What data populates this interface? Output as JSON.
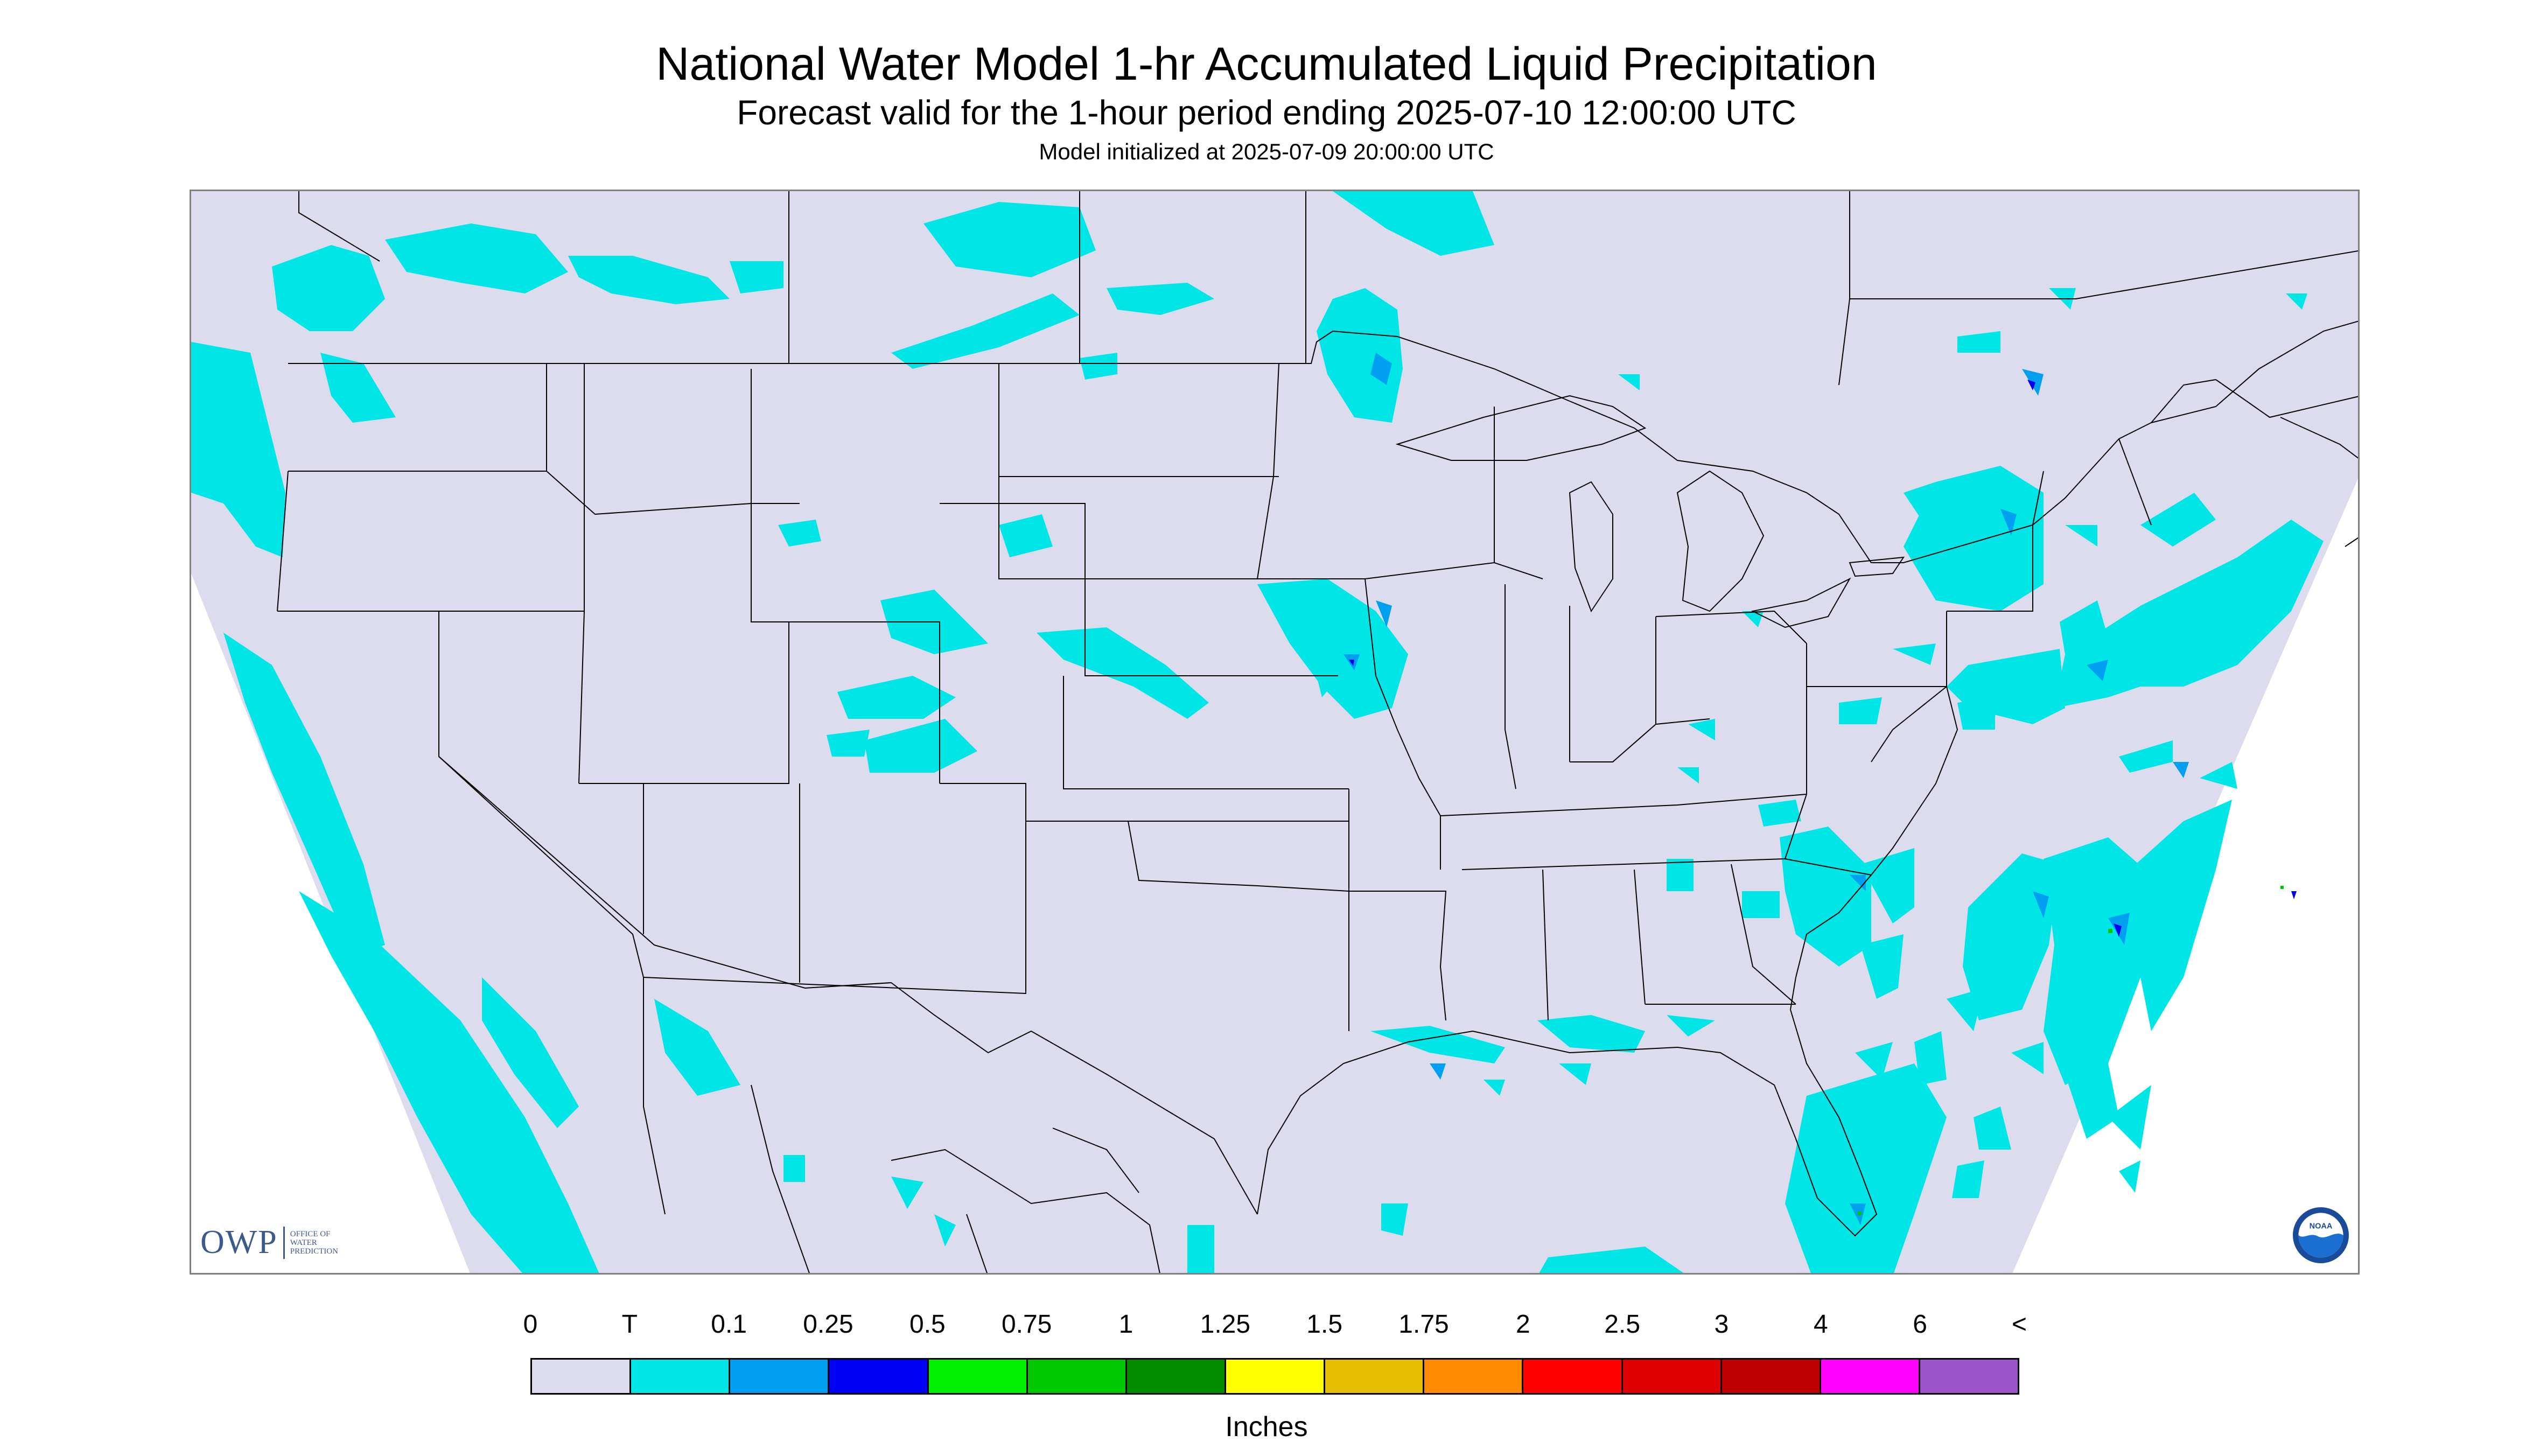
{
  "header": {
    "title": "National Water Model 1-hr Accumulated Liquid Precipitation",
    "subtitle": "Forecast valid for the 1-hour period ending 2025-07-10 12:00:00 UTC",
    "init": "Model initialized at 2025-07-09 20:00:00 UTC"
  },
  "logos": {
    "owp_big": "OWP",
    "owp_line1": "OFFICE OF",
    "owp_line2": "WATER",
    "owp_line3": "PREDICTION",
    "noaa": "NOAA"
  },
  "legend": {
    "units": "Inches",
    "labels": [
      "0",
      "T",
      "0.1",
      "0.25",
      "0.5",
      "0.75",
      "1",
      "1.25",
      "1.5",
      "1.75",
      "2",
      "2.5",
      "3",
      "4",
      "6",
      "<"
    ],
    "colors": [
      "#dcdcee",
      "#00e6e6",
      "#00a0f0",
      "#0000f5",
      "#00f000",
      "#00c800",
      "#008c00",
      "#ffff00",
      "#e6be00",
      "#ff8c00",
      "#ff0000",
      "#dc0000",
      "#be0000",
      "#ff00ff",
      "#9b55c8"
    ]
  },
  "colors": {
    "domain": "#dcdcee",
    "trace": "#00e6e6",
    "boundary": "#000000"
  }
}
